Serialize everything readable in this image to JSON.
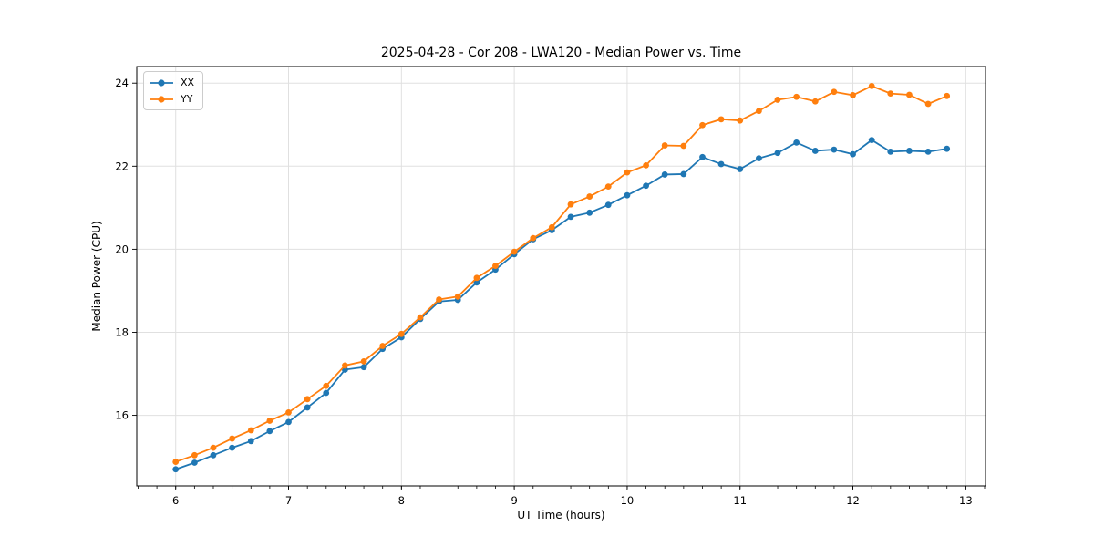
{
  "figure": {
    "kind": "matplotlib-style line plot screenshot"
  },
  "chart_data": {
    "type": "line",
    "title": "2025-04-28 - Cor 208 - LWA120 - Median Power vs. Time",
    "xlabel": "UT Time (hours)",
    "ylabel": "Median Power (CPU)",
    "xlim": [
      5.655,
      13.175
    ],
    "ylim": [
      14.3,
      24.4
    ],
    "xticks": [
      6,
      7,
      8,
      9,
      10,
      11,
      12,
      13
    ],
    "yticks": [
      16,
      18,
      20,
      22,
      24
    ],
    "x_minor_step": 0.16667,
    "grid": true,
    "grid_color": "#e0e0e0",
    "legend_position": "upper-left",
    "x": [
      6.0,
      6.167,
      6.333,
      6.5,
      6.667,
      6.833,
      7.0,
      7.167,
      7.333,
      7.5,
      7.667,
      7.833,
      8.0,
      8.167,
      8.333,
      8.5,
      8.667,
      8.833,
      9.0,
      9.167,
      9.333,
      9.5,
      9.667,
      9.833,
      10.0,
      10.167,
      10.333,
      10.5,
      10.667,
      10.833,
      11.0,
      11.167,
      11.333,
      11.5,
      11.667,
      11.833,
      12.0,
      12.167,
      12.333,
      12.5,
      12.667,
      12.833
    ],
    "series": [
      {
        "name": "XX",
        "color": "#1f77b4",
        "values": [
          14.7,
          14.86,
          15.04,
          15.22,
          15.38,
          15.62,
          15.84,
          16.19,
          16.54,
          17.1,
          17.16,
          17.6,
          17.88,
          18.32,
          18.74,
          18.78,
          19.2,
          19.51,
          19.88,
          20.24,
          20.46,
          20.78,
          20.88,
          21.07,
          21.3,
          21.53,
          21.8,
          21.81,
          22.22,
          22.05,
          21.93,
          22.19,
          22.32,
          22.57,
          22.37,
          22.4,
          22.29,
          22.63,
          22.35,
          22.37,
          22.35,
          22.42
        ]
      },
      {
        "name": "YY",
        "color": "#ff7f0e",
        "values": [
          14.88,
          15.04,
          15.22,
          15.44,
          15.64,
          15.87,
          16.07,
          16.39,
          16.71,
          17.2,
          17.3,
          17.67,
          17.96,
          18.36,
          18.79,
          18.86,
          19.31,
          19.6,
          19.94,
          20.27,
          20.53,
          21.08,
          21.27,
          21.51,
          21.85,
          22.02,
          22.5,
          22.49,
          22.99,
          23.13,
          23.1,
          23.33,
          23.6,
          23.67,
          23.56,
          23.79,
          23.71,
          23.93,
          23.75,
          23.72,
          23.5,
          23.69
        ]
      }
    ]
  }
}
